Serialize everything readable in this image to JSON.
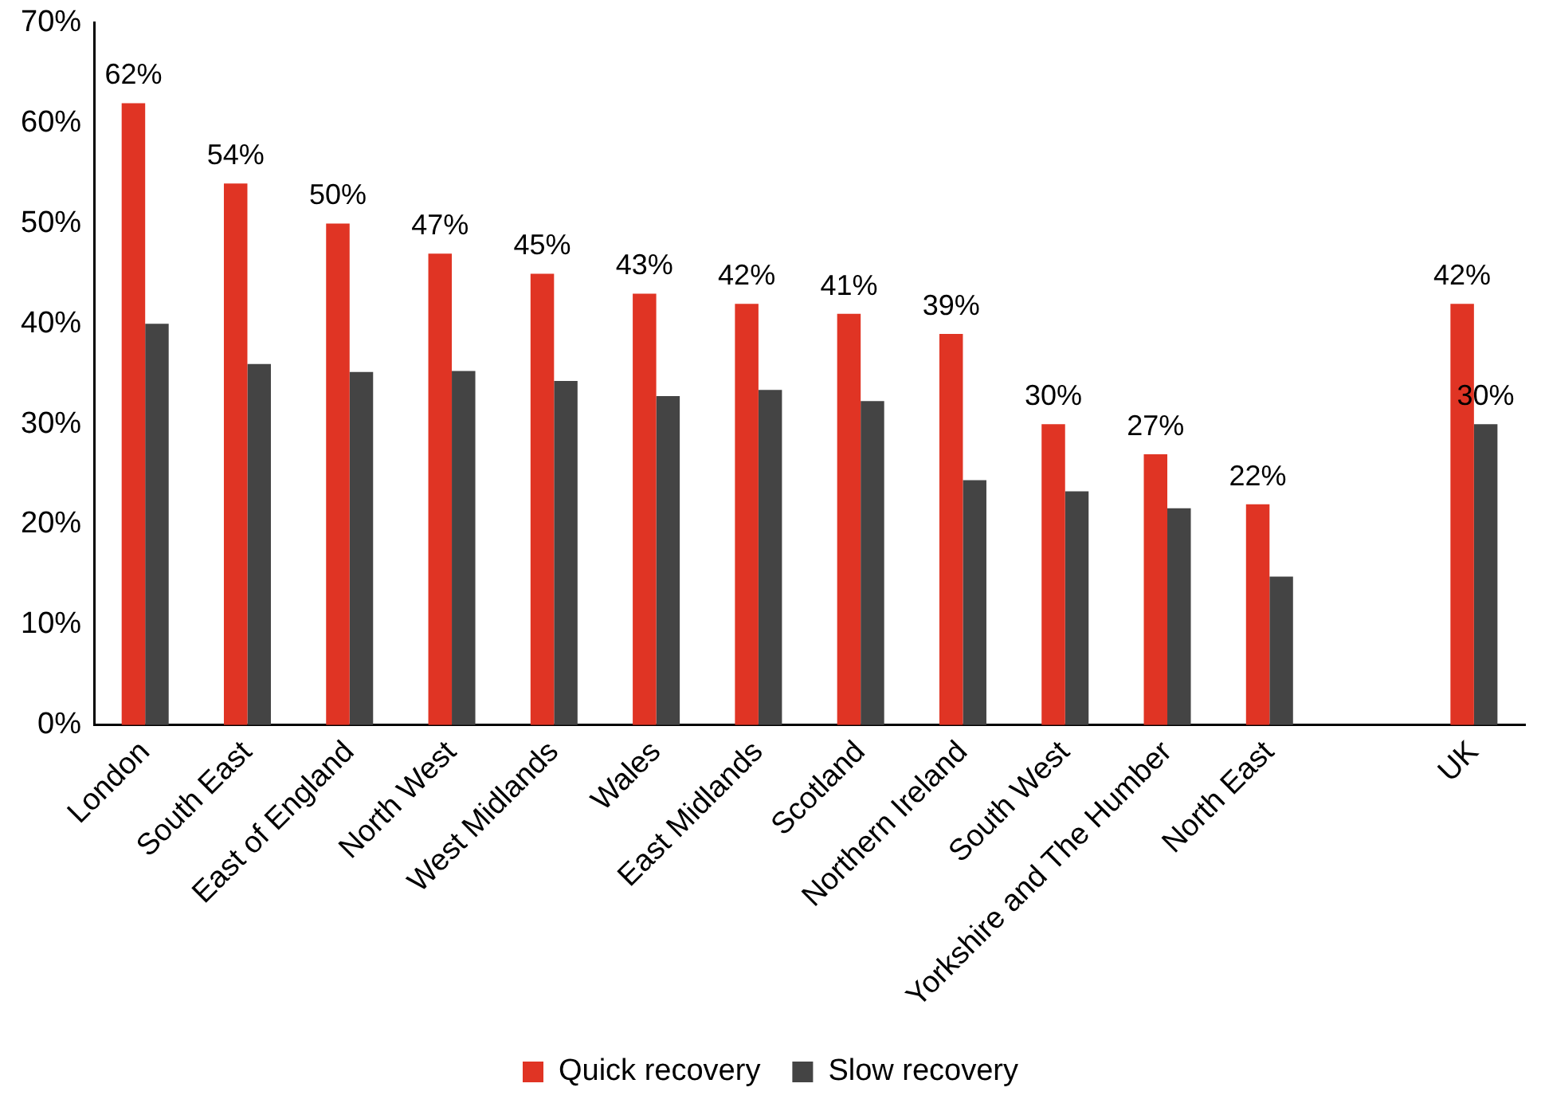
{
  "chart_data": {
    "type": "bar",
    "categories": [
      "London",
      "South East",
      "East of England",
      "North West",
      "West Midlands",
      "Wales",
      "East Midlands",
      "Scotland",
      "Northern Ireland",
      "South West",
      "Yorkshire and The Humber",
      "North East",
      null,
      "UK"
    ],
    "series": [
      {
        "name": "Quick recovery",
        "color": "#e03424",
        "values": [
          62,
          54,
          50,
          47,
          45,
          43,
          42,
          41,
          39,
          30,
          27,
          22,
          null,
          42
        ],
        "value_labels": [
          "62%",
          "54%",
          "50%",
          "47%",
          "45%",
          "43%",
          "42%",
          "41%",
          "39%",
          "30%",
          "27%",
          "22%",
          null,
          "42%"
        ]
      },
      {
        "name": "Slow recovery",
        "color": "#444444",
        "values": [
          40,
          36,
          35.2,
          35.3,
          34.3,
          32.8,
          33.4,
          32.3,
          24.4,
          23.3,
          21.6,
          14.8,
          null,
          30
        ],
        "value_labels": [
          null,
          null,
          null,
          null,
          null,
          null,
          null,
          null,
          null,
          null,
          null,
          null,
          null,
          "30%"
        ]
      }
    ],
    "ylim": [
      0,
      70
    ],
    "yticks": [
      {
        "value": 0,
        "label": "0%"
      },
      {
        "value": 10,
        "label": "10%"
      },
      {
        "value": 20,
        "label": "20%"
      },
      {
        "value": 30,
        "label": "30%"
      },
      {
        "value": 40,
        "label": "40%"
      },
      {
        "value": 50,
        "label": "50%"
      },
      {
        "value": 60,
        "label": "60%"
      },
      {
        "value": 70,
        "label": "70%"
      }
    ],
    "grid": false,
    "legend": "bottom"
  }
}
